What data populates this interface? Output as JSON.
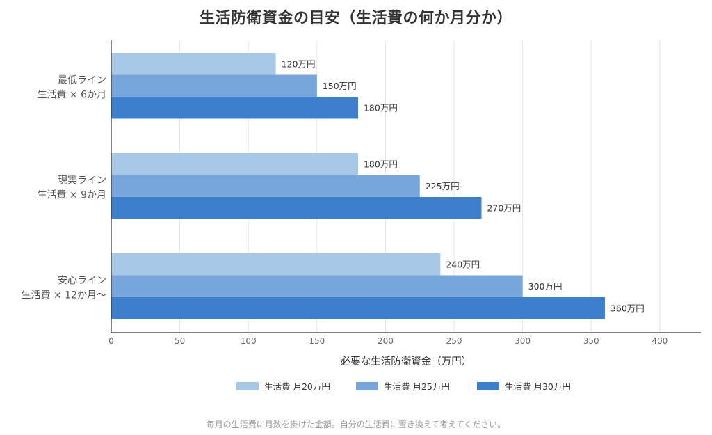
{
  "chart_data": {
    "type": "bar",
    "orientation": "horizontal",
    "title": "生活防衛資金の目安（生活費の何か月分か）",
    "xlabel": "必要な生活防衛資金（万円）",
    "ylabel": "",
    "xlim": [
      0,
      430
    ],
    "x_ticks": [
      "0",
      "50",
      "100",
      "150",
      "200",
      "250",
      "300",
      "350",
      "400"
    ],
    "grid": "vertical",
    "legend_position": "bottom",
    "categories": [
      [
        "最低ライン",
        "生活費 × 6か月"
      ],
      [
        "現実ライン",
        "生活費 × 9か月"
      ],
      [
        "安心ライン",
        "生活費 × 12か月〜"
      ]
    ],
    "series": [
      {
        "name": "生活費 月20万円",
        "color": "#a7c8e6",
        "values": [
          120,
          180,
          240
        ],
        "labels": [
          "120万円",
          "180万円",
          "240万円"
        ]
      },
      {
        "name": "生活費 月25万円",
        "color": "#77a7da",
        "values": [
          150,
          225,
          300
        ],
        "labels": [
          "150万円",
          "225万円",
          "300万円"
        ]
      },
      {
        "name": "生活費 月30万円",
        "color": "#3d7fca",
        "values": [
          180,
          270,
          360
        ],
        "labels": [
          "180万円",
          "270万円",
          "360万円"
        ]
      }
    ]
  },
  "footnote": "毎月の生活費に月数を掛けた金額。自分の生活費に置き換えて考えてください。"
}
